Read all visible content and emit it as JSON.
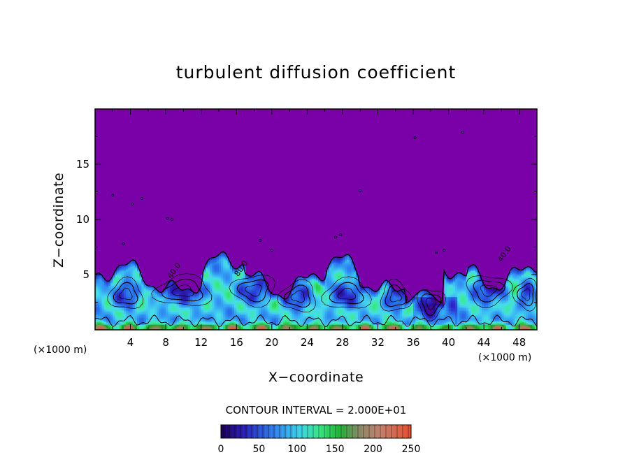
{
  "chart_data": {
    "type": "heatmap",
    "title": "turbulent diffusion coefficient",
    "xlabel": "X−coordinate",
    "ylabel": "Z−coordinate",
    "x_unit_left": "(×1000 m)",
    "x_unit_right": "(×1000 m)",
    "xlim": [
      0,
      50
    ],
    "ylim": [
      0,
      20
    ],
    "xticks": [
      4,
      8,
      12,
      16,
      20,
      24,
      28,
      32,
      36,
      40,
      44,
      48
    ],
    "yticks": [
      5,
      10,
      15
    ],
    "contour_interval_text": "CONTOUR INTERVAL = 2.000E+01",
    "colorbar": {
      "min": 0,
      "max": 250,
      "ticks": [
        0,
        50,
        100,
        150,
        200,
        250
      ]
    },
    "background_value": 0,
    "contour_labels": [
      {
        "text": "80.0",
        "x": 16.2,
        "z": 4.8
      },
      {
        "text": "40.0",
        "x": 8.6,
        "z": 4.6
      },
      {
        "text": "40.0",
        "x": 46.0,
        "z": 6.1
      }
    ],
    "colors": {
      "background": "#7a00a8"
    }
  }
}
